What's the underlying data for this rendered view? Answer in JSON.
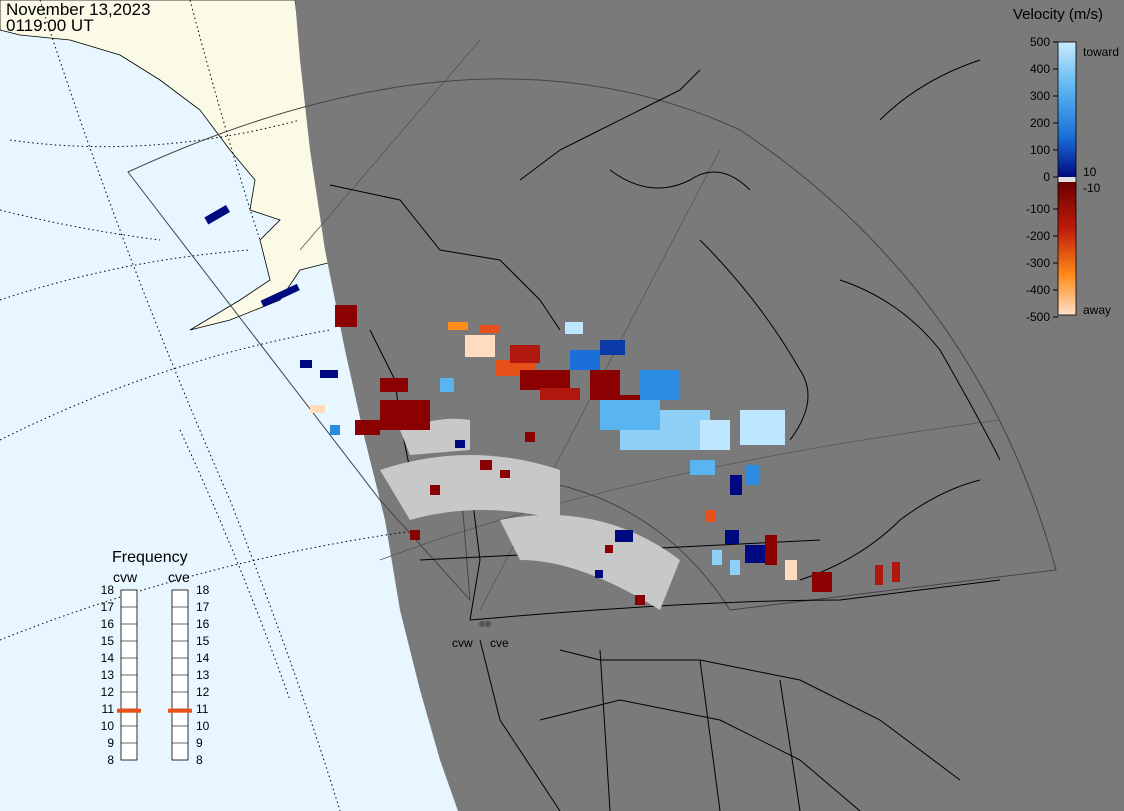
{
  "header": {
    "date": "November 13,2023",
    "time": "0119:00 UT"
  },
  "colorbar": {
    "title": "Velocity (m/s)",
    "ticks": [
      "500",
      "400",
      "300",
      "200",
      "100",
      "0",
      "-100",
      "-200",
      "-300",
      "-400",
      "-500"
    ],
    "toward_label": "toward",
    "away_label": "away",
    "pos_threshold": "10",
    "neg_threshold": "-10"
  },
  "radars": [
    {
      "name": "cvw"
    },
    {
      "name": "cve"
    }
  ],
  "frequency": {
    "title": "Frequency",
    "unit_labels": [
      "cvw",
      "cve"
    ],
    "ticks": [
      "18",
      "17",
      "16",
      "15",
      "14",
      "13",
      "12",
      "11",
      "10",
      "9",
      "8"
    ],
    "values_mhz": [
      10.9,
      10.9
    ]
  },
  "colors": {
    "ocean": "#e8f6ff",
    "land_day": "#fafae6",
    "night": "#7a7a7a",
    "ground_scatter": "#c8c8c8",
    "marker": "#e8501a"
  }
}
